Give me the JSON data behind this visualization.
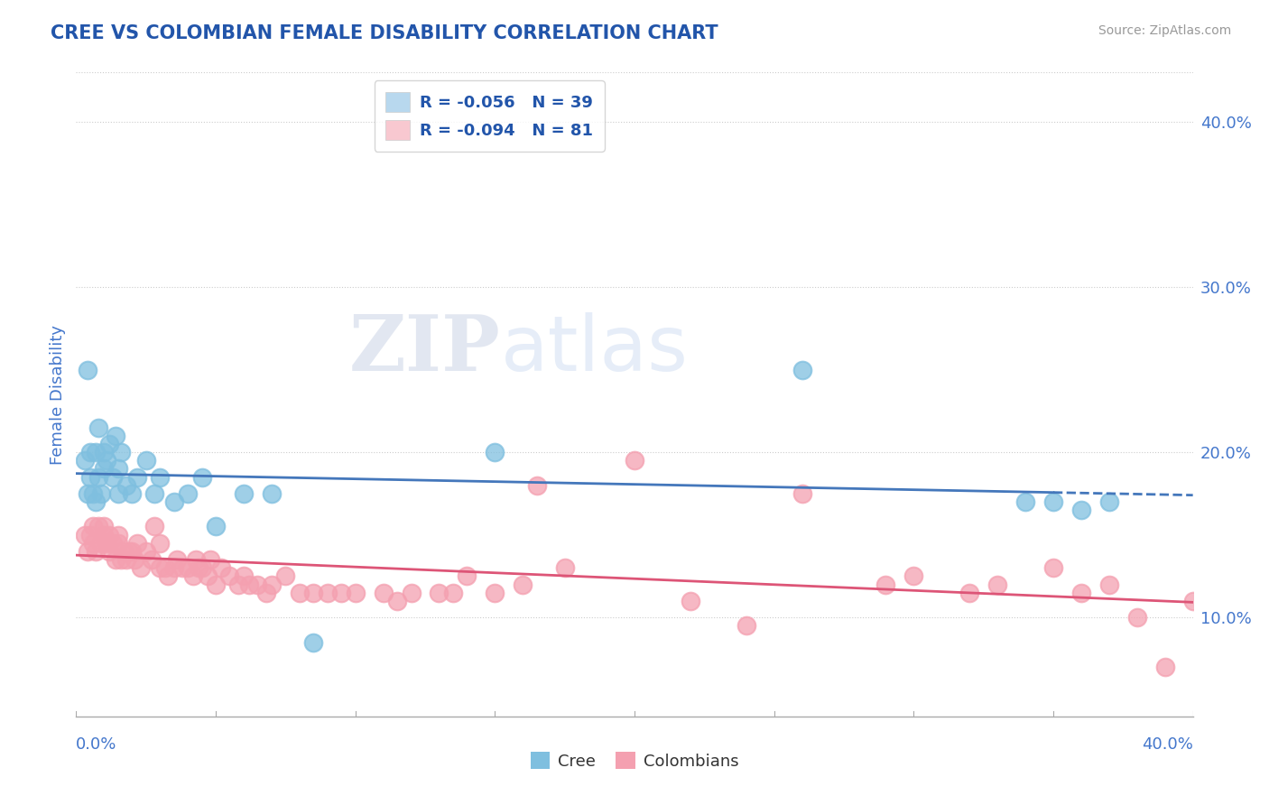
{
  "title": "CREE VS COLOMBIAN FEMALE DISABILITY CORRELATION CHART",
  "source": "Source: ZipAtlas.com",
  "ylabel": "Female Disability",
  "y_ticks": [
    0.1,
    0.2,
    0.3,
    0.4
  ],
  "y_tick_labels": [
    "10.0%",
    "20.0%",
    "30.0%",
    "40.0%"
  ],
  "xlim": [
    0.0,
    0.4
  ],
  "ylim": [
    0.04,
    0.43
  ],
  "legend_r1": "R = -0.056",
  "legend_n1": "N = 39",
  "legend_r2": "R = -0.094",
  "legend_n2": "N = 81",
  "cree_color": "#7fbfdf",
  "colombian_color": "#f4a0b0",
  "cree_line_color": "#4477bb",
  "colombian_line_color": "#dd5577",
  "background_color": "#ffffff",
  "grid_color": "#cccccc",
  "title_color": "#2255aa",
  "axis_label_color": "#4477cc",
  "cree_points_x": [
    0.003,
    0.004,
    0.004,
    0.005,
    0.005,
    0.006,
    0.007,
    0.007,
    0.008,
    0.008,
    0.009,
    0.01,
    0.01,
    0.011,
    0.012,
    0.013,
    0.014,
    0.015,
    0.015,
    0.016,
    0.018,
    0.02,
    0.022,
    0.025,
    0.028,
    0.03,
    0.035,
    0.04,
    0.045,
    0.05,
    0.06,
    0.07,
    0.085,
    0.15,
    0.26,
    0.34,
    0.35,
    0.36,
    0.37
  ],
  "cree_points_y": [
    0.195,
    0.175,
    0.25,
    0.2,
    0.185,
    0.175,
    0.17,
    0.2,
    0.215,
    0.185,
    0.175,
    0.19,
    0.2,
    0.195,
    0.205,
    0.185,
    0.21,
    0.175,
    0.19,
    0.2,
    0.18,
    0.175,
    0.185,
    0.195,
    0.175,
    0.185,
    0.17,
    0.175,
    0.185,
    0.155,
    0.175,
    0.175,
    0.085,
    0.2,
    0.25,
    0.17,
    0.17,
    0.165,
    0.17
  ],
  "colombian_points_x": [
    0.003,
    0.004,
    0.005,
    0.006,
    0.006,
    0.007,
    0.008,
    0.009,
    0.01,
    0.01,
    0.011,
    0.012,
    0.012,
    0.013,
    0.014,
    0.015,
    0.015,
    0.016,
    0.017,
    0.018,
    0.019,
    0.02,
    0.021,
    0.022,
    0.023,
    0.025,
    0.027,
    0.028,
    0.03,
    0.03,
    0.032,
    0.033,
    0.035,
    0.036,
    0.038,
    0.04,
    0.042,
    0.043,
    0.044,
    0.045,
    0.047,
    0.048,
    0.05,
    0.052,
    0.055,
    0.058,
    0.06,
    0.062,
    0.065,
    0.068,
    0.07,
    0.075,
    0.08,
    0.085,
    0.09,
    0.095,
    0.1,
    0.11,
    0.115,
    0.12,
    0.13,
    0.135,
    0.14,
    0.15,
    0.16,
    0.165,
    0.175,
    0.2,
    0.22,
    0.24,
    0.26,
    0.29,
    0.3,
    0.32,
    0.33,
    0.35,
    0.36,
    0.37,
    0.38,
    0.39,
    0.4
  ],
  "colombian_points_y": [
    0.15,
    0.14,
    0.15,
    0.145,
    0.155,
    0.14,
    0.155,
    0.145,
    0.15,
    0.155,
    0.145,
    0.15,
    0.14,
    0.145,
    0.135,
    0.145,
    0.15,
    0.135,
    0.14,
    0.135,
    0.14,
    0.14,
    0.135,
    0.145,
    0.13,
    0.14,
    0.135,
    0.155,
    0.13,
    0.145,
    0.13,
    0.125,
    0.13,
    0.135,
    0.13,
    0.13,
    0.125,
    0.135,
    0.13,
    0.13,
    0.125,
    0.135,
    0.12,
    0.13,
    0.125,
    0.12,
    0.125,
    0.12,
    0.12,
    0.115,
    0.12,
    0.125,
    0.115,
    0.115,
    0.115,
    0.115,
    0.115,
    0.115,
    0.11,
    0.115,
    0.115,
    0.115,
    0.125,
    0.115,
    0.12,
    0.18,
    0.13,
    0.195,
    0.11,
    0.095,
    0.175,
    0.12,
    0.125,
    0.115,
    0.12,
    0.13,
    0.115,
    0.12,
    0.1,
    0.07,
    0.11
  ]
}
